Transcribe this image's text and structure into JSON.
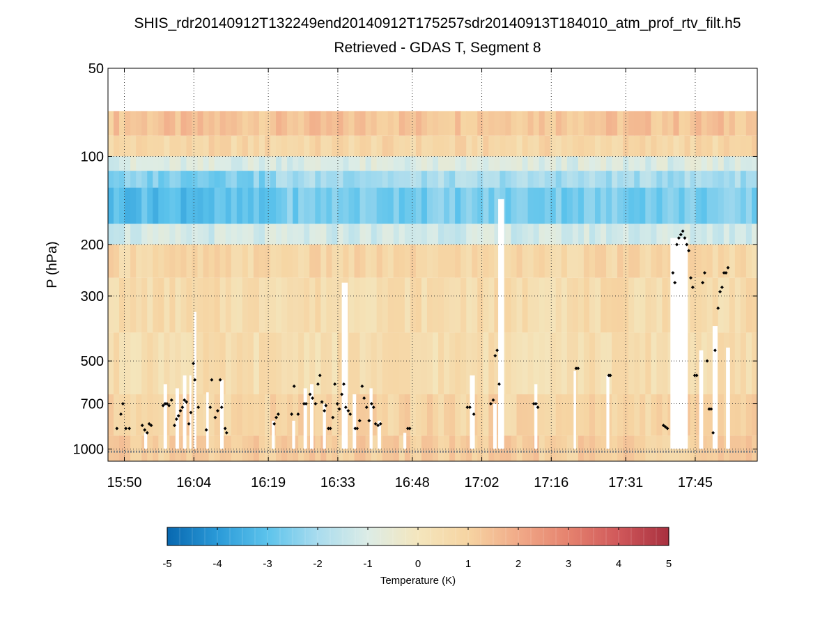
{
  "chart_data": {
    "type": "heatmap",
    "title": "SHIS_rdr20140912T132249end20140912T175257sdr20140913T184010_atm_prof_rtv_filt.h5",
    "subtitle": "Retrieved - GDAS T, Segment 8",
    "ylabel": "P (hPa)",
    "xlabel": "",
    "y_scale": "log",
    "y_reversed": true,
    "ylim": [
      50,
      1100
    ],
    "y_ticks": [
      "50",
      "100",
      "200",
      "300",
      "500",
      "700",
      "1000"
    ],
    "y_tick_values": [
      50,
      100,
      200,
      300,
      500,
      700,
      1000
    ],
    "xlim_minutes": [
      946.7,
      1077.5
    ],
    "x_ticks": [
      "15:50",
      "16:04",
      "16:19",
      "16:33",
      "16:48",
      "17:02",
      "17:16",
      "17:31",
      "17:45"
    ],
    "x_tick_minutes": [
      950,
      964,
      979,
      993,
      1008,
      1022,
      1036,
      1051,
      1065
    ],
    "grid": true,
    "colorbar": {
      "label": "Temperature (K)",
      "vmin": -5,
      "vmax": 5,
      "ticks": [
        "-5",
        "-4",
        "-3",
        "-2",
        "-1",
        "0",
        "1",
        "2",
        "3",
        "4",
        "5"
      ],
      "tick_values": [
        -5,
        -4,
        -3,
        -2,
        -1,
        0,
        1,
        2,
        3,
        4,
        5
      ],
      "colors": [
        "#0868b0",
        "#2a9ad8",
        "#5cc3ec",
        "#a9dcee",
        "#dcece6",
        "#f4e6bd",
        "#f6d4a2",
        "#f1aa88",
        "#e5826e",
        "#d0585a",
        "#a8303f"
      ]
    },
    "layers": [
      {
        "p_top": 70,
        "p_bottom": 85,
        "value": 1.4
      },
      {
        "p_top": 85,
        "p_bottom": 100,
        "value": 0.8
      },
      {
        "p_top": 100,
        "p_bottom": 112,
        "value": -1.0
      },
      {
        "p_top": 112,
        "p_bottom": 128,
        "value": -2.0
      },
      {
        "p_top": 128,
        "p_bottom": 170,
        "value": -2.6
      },
      {
        "p_top": 170,
        "p_bottom": 200,
        "value": -1.2
      },
      {
        "p_top": 200,
        "p_bottom": 260,
        "value": 0.8
      },
      {
        "p_top": 260,
        "p_bottom": 400,
        "value": 0.6
      },
      {
        "p_top": 400,
        "p_bottom": 650,
        "value": 0.5
      },
      {
        "p_top": 650,
        "p_bottom": 900,
        "value": 0.9
      },
      {
        "p_top": 900,
        "p_bottom": 1100,
        "value": 1.1
      }
    ],
    "cloud_columns": [
      {
        "t": 954.0,
        "t_end": 954.6,
        "p_top": 880
      },
      {
        "t": 957.9,
        "t_end": 958.6,
        "p_top": 600
      },
      {
        "t": 960.3,
        "t_end": 961.0,
        "p_top": 620
      },
      {
        "t": 961.8,
        "t_end": 962.5,
        "p_top": 560
      },
      {
        "t": 963.1,
        "t_end": 963.5,
        "p_top": 560
      },
      {
        "t": 964.0,
        "t_end": 964.5,
        "p_top": 340
      },
      {
        "t": 966.5,
        "t_end": 967.0,
        "p_top": 640
      },
      {
        "t": 969.3,
        "t_end": 970.0,
        "p_top": 580
      },
      {
        "t": 979.7,
        "t_end": 980.3,
        "p_top": 800
      },
      {
        "t": 983.8,
        "t_end": 984.4,
        "p_top": 800
      },
      {
        "t": 986.1,
        "t_end": 986.8,
        "p_top": 620
      },
      {
        "t": 987.4,
        "t_end": 988.1,
        "p_top": 600
      },
      {
        "t": 990.0,
        "t_end": 990.6,
        "p_top": 700
      },
      {
        "t": 993.8,
        "t_end": 995.0,
        "p_top": 270
      },
      {
        "t": 996.0,
        "t_end": 996.7,
        "p_top": 650
      },
      {
        "t": 999.4,
        "t_end": 1000.0,
        "p_top": 620
      },
      {
        "t": 1001.0,
        "t_end": 1001.7,
        "p_top": 800
      },
      {
        "t": 1006.2,
        "t_end": 1006.8,
        "p_top": 880
      },
      {
        "t": 1019.6,
        "t_end": 1020.6,
        "p_top": 560
      },
      {
        "t": 1024.3,
        "t_end": 1025.0,
        "p_top": 700
      },
      {
        "t": 1025.3,
        "t_end": 1026.5,
        "p_top": 140
      },
      {
        "t": 1032.6,
        "t_end": 1033.2,
        "p_top": 600
      },
      {
        "t": 1040.5,
        "t_end": 1041.0,
        "p_top": 540
      },
      {
        "t": 1047.1,
        "t_end": 1047.7,
        "p_top": 560
      },
      {
        "t": 1060.0,
        "t_end": 1063.5,
        "p_top": 190
      },
      {
        "t": 1065.8,
        "t_end": 1066.6,
        "p_top": 460
      },
      {
        "t": 1068.5,
        "t_end": 1069.5,
        "p_top": 380
      },
      {
        "t": 1071.2,
        "t_end": 1072.0,
        "p_top": 450
      }
    ],
    "cloud_top_points": [
      [
        948.5,
        850
      ],
      [
        949.3,
        760
      ],
      [
        949.7,
        700
      ],
      [
        950.3,
        850
      ],
      [
        951.0,
        850
      ],
      [
        953.6,
        830
      ],
      [
        954.1,
        860
      ],
      [
        954.6,
        880
      ],
      [
        955.0,
        820
      ],
      [
        955.4,
        830
      ],
      [
        957.8,
        710
      ],
      [
        958.2,
        700
      ],
      [
        958.6,
        700
      ],
      [
        959.0,
        710
      ],
      [
        959.5,
        680
      ],
      [
        960.1,
        830
      ],
      [
        960.5,
        790
      ],
      [
        960.9,
        770
      ],
      [
        961.3,
        740
      ],
      [
        961.7,
        720
      ],
      [
        962.1,
        680
      ],
      [
        962.5,
        690
      ],
      [
        963.0,
        820
      ],
      [
        963.4,
        750
      ],
      [
        963.9,
        510
      ],
      [
        964.2,
        580
      ],
      [
        964.9,
        720
      ],
      [
        966.5,
        860
      ],
      [
        967.3,
        720
      ],
      [
        967.6,
        580
      ],
      [
        968.3,
        780
      ],
      [
        968.8,
        740
      ],
      [
        969.3,
        580
      ],
      [
        969.6,
        720
      ],
      [
        970.3,
        850
      ],
      [
        970.6,
        880
      ],
      [
        980.2,
        820
      ],
      [
        980.6,
        780
      ],
      [
        981.0,
        760
      ],
      [
        983.7,
        760
      ],
      [
        984.2,
        610
      ],
      [
        985.0,
        760
      ],
      [
        986.2,
        700
      ],
      [
        986.6,
        700
      ],
      [
        987.4,
        650
      ],
      [
        987.9,
        670
      ],
      [
        988.5,
        700
      ],
      [
        989.0,
        600
      ],
      [
        989.4,
        560
      ],
      [
        989.8,
        690
      ],
      [
        990.3,
        740
      ],
      [
        990.6,
        710
      ],
      [
        991.1,
        850
      ],
      [
        991.5,
        850
      ],
      [
        992.0,
        780
      ],
      [
        992.4,
        600
      ],
      [
        992.9,
        700
      ],
      [
        993.3,
        730
      ],
      [
        993.8,
        650
      ],
      [
        994.2,
        600
      ],
      [
        994.6,
        720
      ],
      [
        995.1,
        740
      ],
      [
        995.5,
        760
      ],
      [
        996.5,
        850
      ],
      [
        996.9,
        850
      ],
      [
        997.4,
        800
      ],
      [
        997.9,
        610
      ],
      [
        998.3,
        670
      ],
      [
        998.8,
        720
      ],
      [
        999.3,
        800
      ],
      [
        999.8,
        700
      ],
      [
        1000.2,
        720
      ],
      [
        1000.6,
        820
      ],
      [
        1001.1,
        830
      ],
      [
        1001.6,
        820
      ],
      [
        1007.1,
        850
      ],
      [
        1007.5,
        850
      ],
      [
        1019.1,
        720
      ],
      [
        1019.6,
        720
      ],
      [
        1020.4,
        760
      ],
      [
        1023.8,
        700
      ],
      [
        1024.3,
        680
      ],
      [
        1024.7,
        480
      ],
      [
        1025.1,
        460
      ],
      [
        1025.5,
        600
      ],
      [
        1032.5,
        700
      ],
      [
        1032.9,
        700
      ],
      [
        1033.3,
        720
      ],
      [
        1041.0,
        530
      ],
      [
        1041.4,
        530
      ],
      [
        1047.6,
        560
      ],
      [
        1047.9,
        560
      ],
      [
        1058.6,
        830
      ],
      [
        1059.0,
        840
      ],
      [
        1059.4,
        850
      ],
      [
        1060.5,
        250
      ],
      [
        1060.9,
        270
      ],
      [
        1061.3,
        200
      ],
      [
        1061.7,
        190
      ],
      [
        1062.1,
        185
      ],
      [
        1062.5,
        180
      ],
      [
        1062.9,
        190
      ],
      [
        1063.3,
        200
      ],
      [
        1063.7,
        210
      ],
      [
        1064.1,
        260
      ],
      [
        1064.5,
        280
      ],
      [
        1064.9,
        560
      ],
      [
        1065.3,
        560
      ],
      [
        1066.5,
        270
      ],
      [
        1066.9,
        250
      ],
      [
        1067.4,
        500
      ],
      [
        1067.8,
        730
      ],
      [
        1068.2,
        730
      ],
      [
        1068.6,
        880
      ],
      [
        1069.0,
        460
      ],
      [
        1069.6,
        330
      ],
      [
        1070.0,
        290
      ],
      [
        1070.4,
        280
      ],
      [
        1070.8,
        250
      ],
      [
        1071.2,
        250
      ],
      [
        1071.6,
        240
      ]
    ],
    "surface_pressure": 1020,
    "colors": {
      "cloud_point": "#000000",
      "surface_marker": "#808080",
      "grid": "#333333"
    }
  }
}
